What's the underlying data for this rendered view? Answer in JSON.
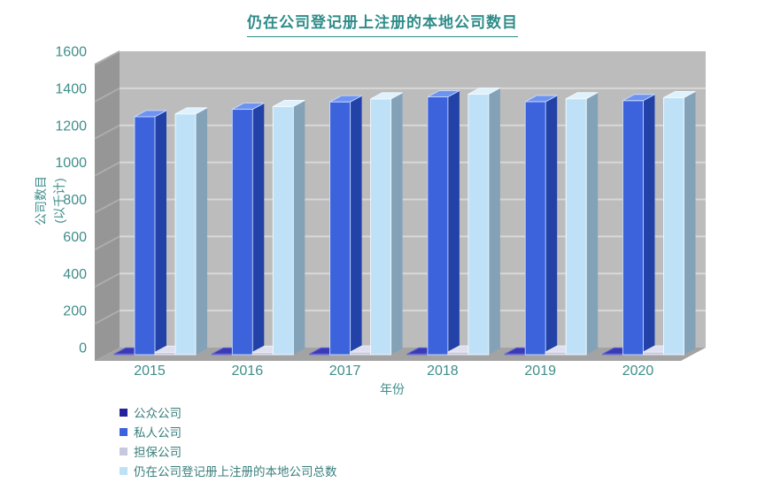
{
  "title": "仍在公司登记册上注册的本地公司数目",
  "y_axis": {
    "label_line1": "公司数目",
    "label_line2": "(以千计)",
    "ticks": [
      0,
      200,
      400,
      600,
      800,
      1000,
      1200,
      1400,
      1600
    ],
    "max": 1600
  },
  "x_axis": {
    "label": "年份"
  },
  "colors": {
    "background": "#FFFFFF",
    "text_teal": "#3E8E8B",
    "title_teal": "#2E8C89",
    "legend_text": "#3A7F7C",
    "back_wall": "#BCBCBC",
    "left_wall": "#969696",
    "floor": "#A3A3A3",
    "gridline_back": "#D8D8D8",
    "gridline_side": "#ADADAD"
  },
  "chart_data": {
    "type": "bar",
    "variant": "3d-grouped-columns",
    "title": "仍在公司登记册上注册的本地公司数目",
    "xlabel": "年份",
    "ylabel": "公司数目 (以千计)",
    "units": "thousands of companies",
    "ylim": [
      0,
      1600
    ],
    "grid": true,
    "legend_position": "bottom-left",
    "categories": [
      "2015",
      "2016",
      "2017",
      "2018",
      "2019",
      "2020"
    ],
    "series": [
      {
        "name": "公众公司",
        "values": [
          2,
          2,
          2,
          2,
          2,
          2
        ],
        "colors": {
          "front": "#22229A",
          "top": "#3A3AB6",
          "side": "#131370",
          "edge": "#6A6AD4"
        }
      },
      {
        "name": "私人公司",
        "values": [
          1285,
          1325,
          1365,
          1392,
          1366,
          1372
        ],
        "colors": {
          "front": "#3D63DC",
          "top": "#6E92F0",
          "side": "#2342A8",
          "edge": "#C7DBFF"
        }
      },
      {
        "name": "担保公司",
        "values": [
          13,
          13,
          14,
          14,
          14,
          14
        ],
        "colors": {
          "front": "#C7C8DF",
          "top": "#DEDFEF",
          "side": "#9C9DBE",
          "edge": "#EFF0F8"
        }
      },
      {
        "name": "仍在公司登记册上注册的本地公司总数",
        "values": [
          1300,
          1340,
          1381,
          1407,
          1382,
          1388
        ],
        "colors": {
          "front": "#BFE1F8",
          "top": "#DFF1FC",
          "side": "#83A2B8",
          "edge": "#F2FAFF"
        }
      }
    ]
  }
}
